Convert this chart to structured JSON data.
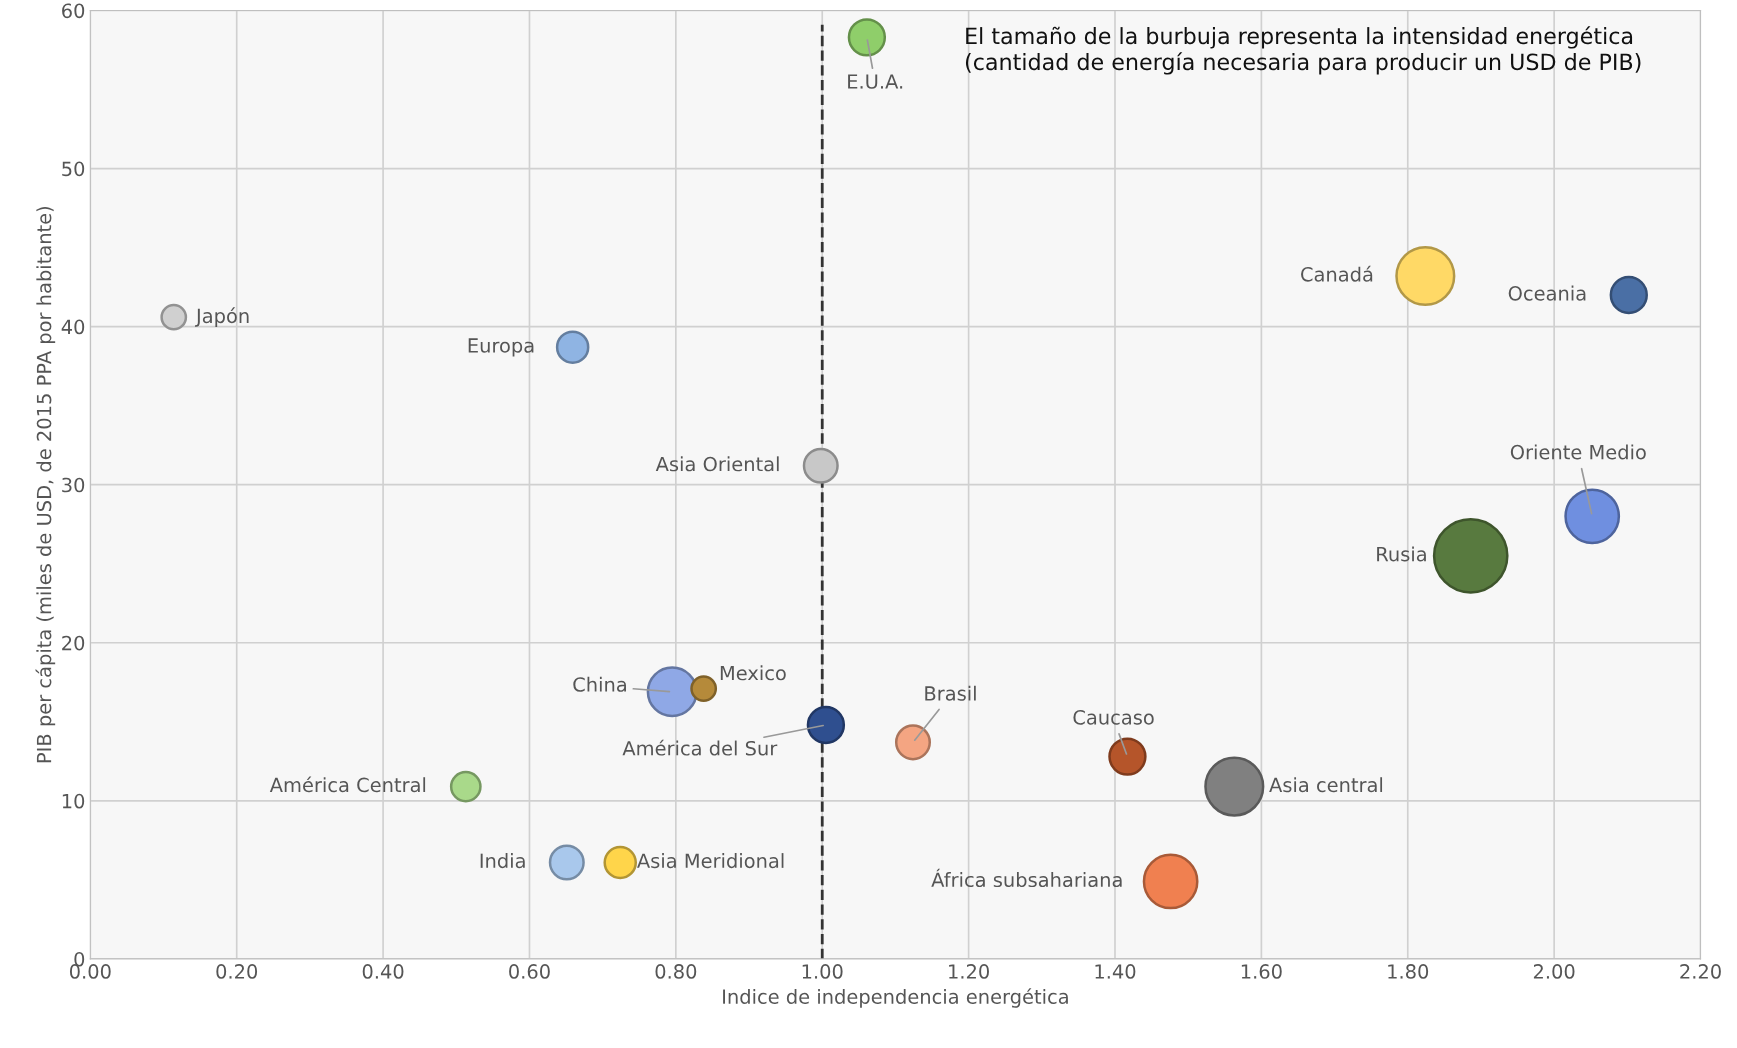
{
  "chart_data": {
    "type": "bubble",
    "xlabel": "Indice de independencia energética",
    "ylabel": "PIB per cápita (miles de USD, de 2015 PPA por habitante)",
    "x": [
      0.114,
      0.659,
      0.998,
      1.061,
      1.824,
      2.102,
      2.052,
      1.886,
      0.795,
      0.838,
      1.005,
      1.124,
      1.417,
      1.563,
      1.476,
      0.513,
      0.651,
      0.724
    ],
    "values": [
      40.6,
      38.7,
      31.2,
      58.3,
      43.2,
      42.0,
      28.0,
      25.5,
      16.9,
      17.1,
      14.8,
      13.7,
      12.8,
      10.9,
      4.9,
      10.9,
      6.1,
      6.1
    ],
    "sizes": [
      0.11,
      0.18,
      0.21,
      0.24,
      0.62,
      0.24,
      0.53,
      1,
      0.44,
      0.11,
      0.24,
      0.21,
      0.24,
      0.62,
      0.53,
      0.16,
      0.21,
      0.18
    ],
    "colors": [
      "#d0d0d0",
      "#8fb4e3",
      "#c8c8c8",
      "#8fce6a",
      "#ffd966",
      "#4a6fa5",
      "#6f8fe0",
      "#587a3f",
      "#8fa8e6",
      "#b58a3a",
      "#2f4f8f",
      "#f4a582",
      "#b5552a",
      "#808080",
      "#f08050",
      "#a9d98a",
      "#a9c8ec",
      "#ffd54a"
    ],
    "annotations": [
      {
        "text": "Japón",
        "x": 0.114,
        "y": 40.6
      },
      {
        "text": "Europa",
        "x": 0.659,
        "y": 38.7
      },
      {
        "text": "Asia Oriental",
        "x": 0.998,
        "y": 31.2
      },
      {
        "text": "E.U.A.",
        "x": 1.061,
        "y": 58.3
      },
      {
        "text": "Canadá",
        "x": 1.824,
        "y": 43.2
      },
      {
        "text": "Oceania",
        "x": 2.102,
        "y": 42.0
      },
      {
        "text": "Oriente Medio",
        "x": 2.052,
        "y": 28.0
      },
      {
        "text": "Rusia",
        "x": 1.886,
        "y": 25.5
      },
      {
        "text": "China",
        "x": 0.795,
        "y": 16.9
      },
      {
        "text": "Mexico",
        "x": 0.838,
        "y": 17.1
      },
      {
        "text": "América del Sur",
        "x": 1.005,
        "y": 14.8
      },
      {
        "text": "Brasil",
        "x": 1.124,
        "y": 13.7
      },
      {
        "text": "Caucaso",
        "x": 1.417,
        "y": 12.8
      },
      {
        "text": "Asia central",
        "x": 1.563,
        "y": 10.9
      },
      {
        "text": "África subsahariana",
        "x": 1.476,
        "y": 4.9
      },
      {
        "text": "América Central",
        "x": 0.513,
        "y": 10.9
      },
      {
        "text": "India",
        "x": 0.651,
        "y": 6.1
      },
      {
        "text": "Asia Meridional",
        "x": 0.724,
        "y": 6.1
      },
      "El tamaño de la burbuja representa la intensidad energética (cantidad de energía necesaria para producir un USD de PIB)"
    ],
    "ref_lines": [
      {
        "axis": "x",
        "value": 1.0,
        "color": "#333333",
        "line_style": "dashed"
      }
    ],
    "xlim": [
      0,
      2.2
    ],
    "xticks": [
      {
        "value": 0,
        "label": "0.00"
      },
      {
        "value": 0.2,
        "label": "0.20"
      },
      {
        "value": 0.4,
        "label": "0.40"
      },
      {
        "value": 0.6,
        "label": "0.60"
      },
      {
        "value": 0.8,
        "label": "0.80"
      },
      {
        "value": 1.0,
        "label": "1.00"
      },
      {
        "value": 1.2,
        "label": "1.20"
      },
      {
        "value": 1.4,
        "label": "1.40"
      },
      {
        "value": 1.6,
        "label": "1.60"
      },
      {
        "value": 1.8,
        "label": "1.80"
      },
      {
        "value": 2.0,
        "label": "2.00"
      },
      {
        "value": 2.2,
        "label": "2.20"
      }
    ],
    "ylim": [
      0,
      60
    ],
    "yticks": [
      0,
      10,
      20,
      30,
      40,
      50,
      60
    ],
    "grid": true,
    "legend": false
  }
}
